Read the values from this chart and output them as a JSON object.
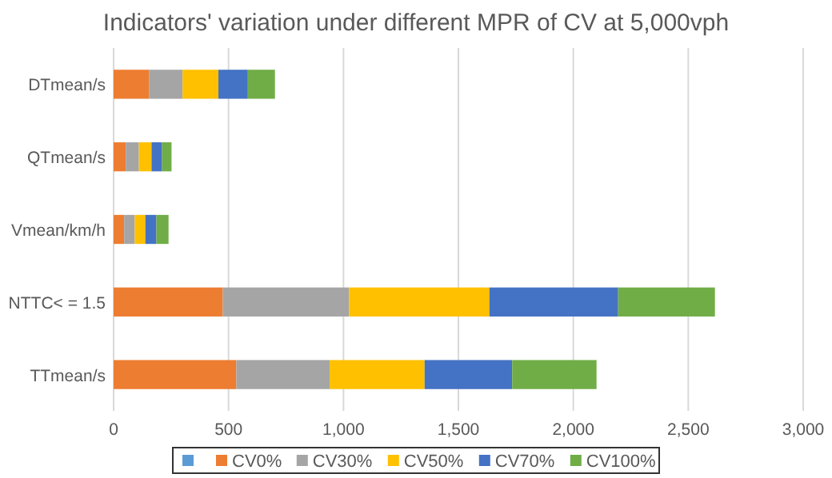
{
  "chart_data": {
    "type": "bar",
    "orientation": "horizontal",
    "stacked": true,
    "title": "Indicators' variation under different MPR of CV at 5,000vph",
    "categories": [
      "DTmean/s",
      "QTmean/s",
      "Vmean/km/h",
      "NTTC< = 1.5",
      "TTmean/s"
    ],
    "series": [
      {
        "color": "#5b9bd5",
        "values": [
          null,
          null,
          null,
          null,
          null
        ]
      },
      {
        "name": "CV0%",
        "color": "#ed7d31",
        "values": [
          154,
          53,
          46,
          475,
          534
        ]
      },
      {
        "name": "CV30%",
        "color": "#a5a5a5",
        "values": [
          146,
          57,
          46,
          549,
          406
        ]
      },
      {
        "name": "CV50%",
        "color": "#ffc000",
        "values": [
          156,
          55,
          46,
          611,
          413
        ]
      },
      {
        "name": "CV70%",
        "color": "#4472c4",
        "values": [
          128,
          46,
          48,
          560,
          381
        ]
      },
      {
        "name": "CV100%",
        "color": "#70ad47",
        "values": [
          118,
          41,
          53,
          421,
          367
        ]
      }
    ],
    "xlim": [
      0,
      3000
    ],
    "xticks": [
      0,
      {
        "value": 500,
        "label": "500"
      },
      {
        "value": 1000,
        "label": "1,000"
      },
      {
        "value": 1500,
        "label": "1,500"
      },
      {
        "value": 2000,
        "label": "2,000"
      },
      {
        "value": 2500,
        "label": "2,500"
      },
      {
        "value": 3000,
        "label": "3,000"
      }
    ],
    "grid": "x",
    "legend": "bottom"
  }
}
